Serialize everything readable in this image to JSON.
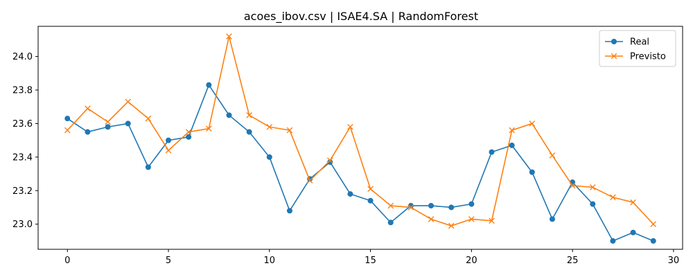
{
  "chart_data": {
    "type": "line",
    "title": "acoes_ibov.csv | ISAE4.SA | RandomForest",
    "xlabel": "",
    "ylabel": "",
    "xlim": [
      -1.45,
      30.45
    ],
    "ylim": [
      22.85,
      24.18
    ],
    "xticks": [
      0,
      5,
      10,
      15,
      20,
      25,
      30
    ],
    "yticks": [
      23.0,
      23.2,
      23.4,
      23.6,
      23.8,
      24.0
    ],
    "ytick_labels": [
      "23.0",
      "23.2",
      "23.4",
      "23.6",
      "23.8",
      "24.0"
    ],
    "grid": false,
    "legend_position": "top-right",
    "x": [
      0,
      1,
      2,
      3,
      4,
      5,
      6,
      7,
      8,
      9,
      10,
      11,
      12,
      13,
      14,
      15,
      16,
      17,
      18,
      19,
      20,
      21,
      22,
      23,
      24,
      25,
      26,
      27,
      28,
      29
    ],
    "series": [
      {
        "name": "Real",
        "color": "#1f77b4",
        "marker": "circle",
        "values": [
          23.63,
          23.55,
          23.58,
          23.6,
          23.34,
          23.5,
          23.52,
          23.83,
          23.65,
          23.55,
          23.4,
          23.08,
          23.27,
          23.37,
          23.18,
          23.14,
          23.01,
          23.11,
          23.11,
          23.1,
          23.12,
          23.43,
          23.47,
          23.31,
          23.03,
          23.25,
          23.12,
          22.9,
          22.95,
          22.9
        ]
      },
      {
        "name": "Previsto",
        "color": "#ff7f0e",
        "marker": "x",
        "values": [
          23.56,
          23.69,
          23.61,
          23.73,
          23.63,
          23.44,
          23.55,
          23.57,
          24.12,
          23.65,
          23.58,
          23.56,
          23.26,
          23.38,
          23.58,
          23.21,
          23.11,
          23.1,
          23.03,
          22.99,
          23.03,
          23.02,
          23.56,
          23.6,
          23.41,
          23.23,
          23.22,
          23.16,
          23.13,
          23.0
        ]
      }
    ]
  }
}
